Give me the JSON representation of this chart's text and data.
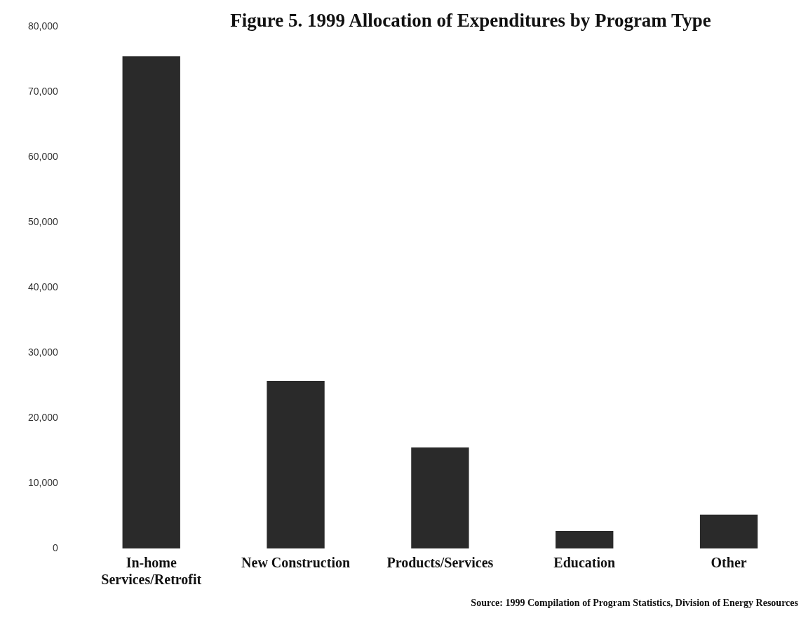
{
  "chart_data": {
    "type": "bar",
    "title": "Figure 5. 1999 Allocation of Expenditures by Program Type",
    "categories": [
      "In-home Services/Retrofit",
      "New Construction",
      "Products/Services",
      "Education",
      "Other"
    ],
    "values": [
      75500,
      25700,
      15500,
      2700,
      5200
    ],
    "color": "#2a2a2a",
    "ylim": [
      0,
      80000
    ],
    "yticks": [
      {
        "value": 0,
        "label": "0"
      },
      {
        "value": 10000,
        "label": "10,000"
      },
      {
        "value": 20000,
        "label": "20,000"
      },
      {
        "value": 30000,
        "label": "30,000"
      },
      {
        "value": 40000,
        "label": "40,000"
      },
      {
        "value": 50000,
        "label": "50,000"
      },
      {
        "value": 60000,
        "label": "60,000"
      },
      {
        "value": 70000,
        "label": "70,000"
      },
      {
        "value": 80000,
        "label": "80,000"
      }
    ],
    "grid": false,
    "annotations": [
      "Source:  1999 Compilation of Program  Statistics, Division of Energy Resources"
    ]
  }
}
